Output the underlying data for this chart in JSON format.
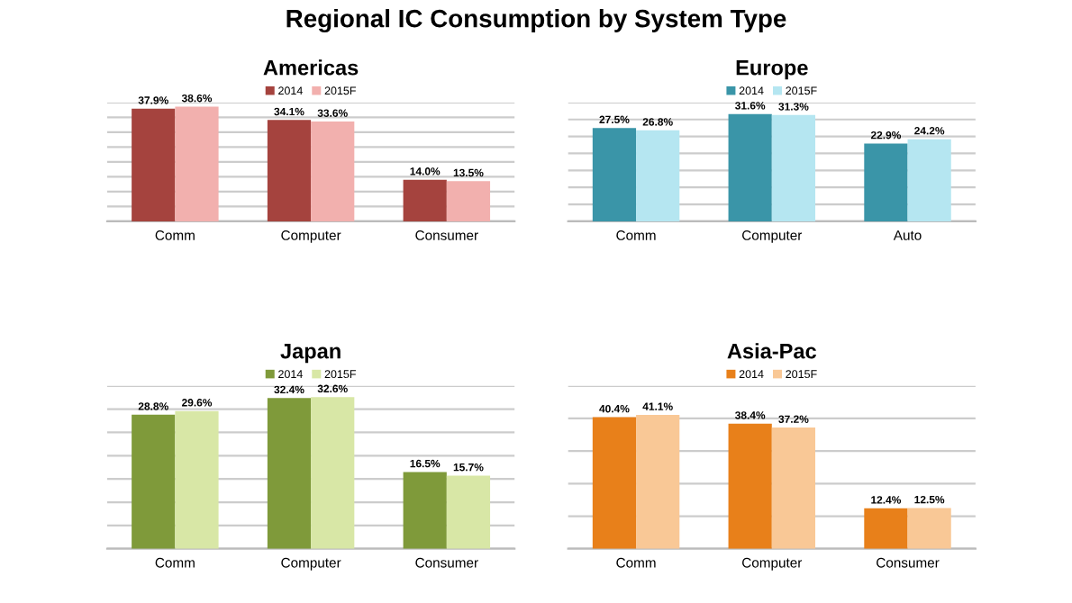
{
  "chart_data": [
    {
      "type": "other",
      "title": "Regional IC Consumption by System Type"
    },
    {
      "type": "bar",
      "title": "Americas",
      "categories": [
        "Comm",
        "Computer",
        "Consumer"
      ],
      "ylim": [
        0,
        40
      ],
      "yticks": [
        {
          "value": 0,
          "label": null
        },
        {
          "value": 5,
          "label": null
        },
        {
          "value": 10,
          "label": null
        },
        {
          "value": 15,
          "label": null
        },
        {
          "value": 20,
          "label": null
        },
        {
          "value": 25,
          "label": null
        },
        {
          "value": 30,
          "label": null
        },
        {
          "value": 35,
          "label": null
        },
        {
          "value": 40,
          "label": null
        }
      ],
      "grid": "y",
      "legend": "top",
      "tick_labels": "x",
      "series": [
        {
          "name": "2014",
          "color": "#a5433e",
          "values": [
            37.9,
            34.1,
            14.0
          ],
          "value_labels": [
            "37.9%",
            "34.1%",
            "14.0%"
          ]
        },
        {
          "name": "2015F",
          "color": "#f2b0ae",
          "values": [
            38.6,
            33.6,
            13.5
          ],
          "value_labels": [
            "38.6%",
            "33.6%",
            "13.5%"
          ]
        }
      ]
    },
    {
      "type": "bar",
      "title": "Europe",
      "categories": [
        "Comm",
        "Computer",
        "Auto"
      ],
      "ylim": [
        0,
        35
      ],
      "yticks": [
        {
          "value": 0,
          "label": null
        },
        {
          "value": 5,
          "label": null
        },
        {
          "value": 10,
          "label": null
        },
        {
          "value": 15,
          "label": null
        },
        {
          "value": 20,
          "label": null
        },
        {
          "value": 25,
          "label": null
        },
        {
          "value": 30,
          "label": null
        },
        {
          "value": 35,
          "label": null
        }
      ],
      "grid": "y",
      "legend": "top",
      "tick_labels": "x",
      "series": [
        {
          "name": "2014",
          "color": "#3a95a8",
          "values": [
            27.5,
            31.6,
            22.9
          ],
          "value_labels": [
            "27.5%",
            "31.6%",
            "22.9%"
          ]
        },
        {
          "name": "2015F",
          "color": "#b5e6f1",
          "values": [
            26.8,
            31.3,
            24.2
          ],
          "value_labels": [
            "26.8%",
            "31.3%",
            "24.2%"
          ]
        }
      ]
    },
    {
      "type": "bar",
      "title": "Japan",
      "categories": [
        "Comm",
        "Computer",
        "Consumer"
      ],
      "ylim": [
        0,
        35
      ],
      "yticks": [
        {
          "value": 0,
          "label": null
        },
        {
          "value": 5,
          "label": null
        },
        {
          "value": 10,
          "label": null
        },
        {
          "value": 15,
          "label": null
        },
        {
          "value": 20,
          "label": null
        },
        {
          "value": 25,
          "label": null
        },
        {
          "value": 30,
          "label": null
        },
        {
          "value": 35,
          "label": null
        }
      ],
      "grid": "y",
      "legend": "top",
      "tick_labels": "x",
      "series": [
        {
          "name": "2014",
          "color": "#7f9a3a",
          "values": [
            28.8,
            32.4,
            16.5
          ],
          "value_labels": [
            "28.8%",
            "32.4%",
            "16.5%"
          ]
        },
        {
          "name": "2015F",
          "color": "#d8e7a6",
          "values": [
            29.6,
            32.6,
            15.7
          ],
          "value_labels": [
            "29.6%",
            "32.6%",
            "15.7%"
          ]
        }
      ]
    },
    {
      "type": "bar",
      "title": "Asia-Pac",
      "categories": [
        "Comm",
        "Computer",
        "Consumer"
      ],
      "ylim": [
        0,
        50
      ],
      "yticks": [
        {
          "value": 0,
          "label": null
        },
        {
          "value": 10,
          "label": null
        },
        {
          "value": 20,
          "label": null
        },
        {
          "value": 30,
          "label": null
        },
        {
          "value": 40,
          "label": null
        },
        {
          "value": 50,
          "label": null
        }
      ],
      "grid": "y",
      "legend": "top",
      "tick_labels": "x",
      "series": [
        {
          "name": "2014",
          "color": "#e8801a",
          "values": [
            40.4,
            38.4,
            12.4
          ],
          "value_labels": [
            "40.4%",
            "38.4%",
            "12.4%"
          ]
        },
        {
          "name": "2015F",
          "color": "#f9c896",
          "values": [
            41.1,
            37.2,
            12.5
          ],
          "value_labels": [
            "41.1%",
            "37.2%",
            "12.5%"
          ]
        }
      ]
    }
  ]
}
